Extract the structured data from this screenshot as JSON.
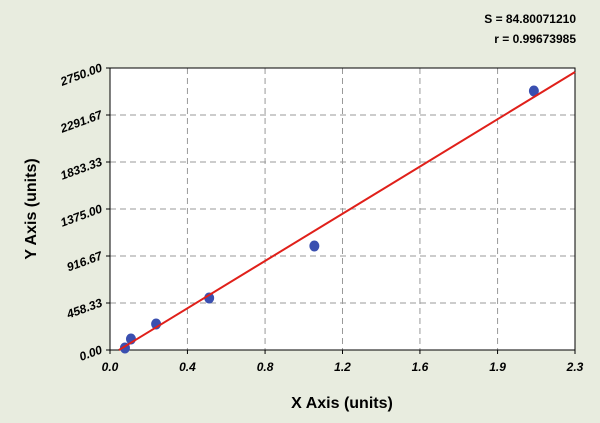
{
  "chart_data": {
    "type": "scatter",
    "x_label": "X Axis (units)",
    "y_label": "Y Axis (units)",
    "annotations": [
      "S = 84.80071210",
      "r = 0.99673985"
    ],
    "xlim": [
      0,
      2.33
    ],
    "xticks": [
      {
        "value": 0,
        "label": "0.0"
      },
      {
        "value": 0.388,
        "label": "0.4"
      },
      {
        "value": 0.777,
        "label": "0.8"
      },
      {
        "value": 1.165,
        "label": "1.2"
      },
      {
        "value": 1.553,
        "label": "1.6"
      },
      {
        "value": 1.942,
        "label": "1.9"
      },
      {
        "value": 2.33,
        "label": "2.3"
      }
    ],
    "ylim": [
      0,
      2750
    ],
    "yticks": [
      {
        "value": 0,
        "label": "0.00"
      },
      {
        "value": 458.33,
        "label": "458.33"
      },
      {
        "value": 916.67,
        "label": "916.67"
      },
      {
        "value": 1375,
        "label": "1375.00"
      },
      {
        "value": 1833.33,
        "label": "1833.33"
      },
      {
        "value": 2291.67,
        "label": "2291.67"
      },
      {
        "value": 2750,
        "label": "2750.00"
      }
    ],
    "grid": true,
    "series": [
      {
        "color": "#3a4fb0",
        "x": [
          0.075,
          0.105,
          0.231,
          0.497,
          1.024,
          2.124
        ],
        "values": [
          20,
          107,
          254,
          507,
          1014,
          2526
        ]
      }
    ],
    "fit": {
      "color": "#e0201a",
      "x": [
        0.045,
        2.33
      ],
      "values": [
        0,
        2711
      ]
    }
  }
}
